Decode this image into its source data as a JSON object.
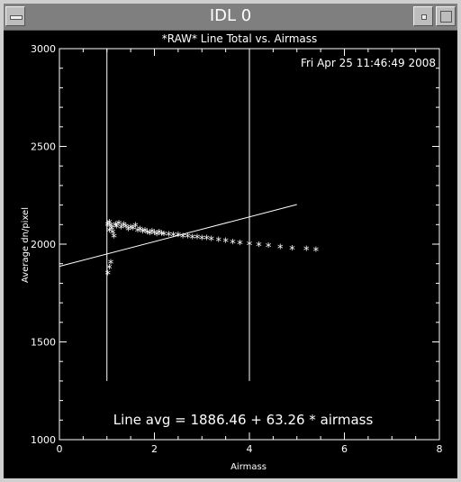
{
  "window": {
    "title": "IDL 0"
  },
  "chart_data": {
    "type": "scatter",
    "title": "*RAW* Line Total vs. Airmass",
    "timestamp": "Fri Apr 25 11:46:49 2008",
    "xlabel": "Airmass",
    "ylabel": "Average dn/pixel",
    "xlim": [
      0,
      8
    ],
    "ylim": [
      1000,
      3000
    ],
    "xticks": [
      "0",
      "2",
      "4",
      "6",
      "8"
    ],
    "yticks": [
      "1000",
      "1500",
      "2000",
      "2500",
      "3000"
    ],
    "fit_label": "Line avg = 1886.46 + 63.26 * airmass",
    "fit": {
      "intercept": 1886.46,
      "slope": 63.26,
      "x_range": [
        0,
        5
      ]
    },
    "vertical_lines": [
      1,
      4
    ],
    "vertical_line_y_range": [
      1300,
      3000
    ],
    "marker": "*",
    "points": [
      [
        1.02,
        1850
      ],
      [
        1.05,
        1880
      ],
      [
        1.08,
        1905
      ],
      [
        1.02,
        2100
      ],
      [
        1.05,
        2110
      ],
      [
        1.08,
        2095
      ],
      [
        1.1,
        2080
      ],
      [
        1.12,
        2060
      ],
      [
        1.15,
        2040
      ],
      [
        1.05,
        2070
      ],
      [
        1.18,
        2100
      ],
      [
        1.2,
        2090
      ],
      [
        1.25,
        2105
      ],
      [
        1.3,
        2085
      ],
      [
        1.35,
        2100
      ],
      [
        1.4,
        2090
      ],
      [
        1.45,
        2075
      ],
      [
        1.5,
        2085
      ],
      [
        1.55,
        2080
      ],
      [
        1.6,
        2095
      ],
      [
        1.65,
        2070
      ],
      [
        1.7,
        2075
      ],
      [
        1.75,
        2065
      ],
      [
        1.8,
        2070
      ],
      [
        1.85,
        2060
      ],
      [
        1.9,
        2055
      ],
      [
        1.95,
        2065
      ],
      [
        2.0,
        2058
      ],
      [
        2.05,
        2050
      ],
      [
        2.1,
        2060
      ],
      [
        2.15,
        2052
      ],
      [
        2.2,
        2050
      ],
      [
        2.3,
        2048
      ],
      [
        2.4,
        2045
      ],
      [
        2.5,
        2045
      ],
      [
        2.6,
        2040
      ],
      [
        2.7,
        2040
      ],
      [
        2.8,
        2035
      ],
      [
        2.9,
        2035
      ],
      [
        3.0,
        2030
      ],
      [
        3.1,
        2030
      ],
      [
        3.2,
        2025
      ],
      [
        3.35,
        2020
      ],
      [
        3.5,
        2015
      ],
      [
        3.65,
        2010
      ],
      [
        3.8,
        2005
      ],
      [
        4.0,
        2000
      ],
      [
        4.2,
        1995
      ],
      [
        4.4,
        1990
      ],
      [
        4.65,
        1985
      ],
      [
        4.9,
        1978
      ],
      [
        5.2,
        1975
      ],
      [
        5.4,
        1970
      ]
    ]
  }
}
